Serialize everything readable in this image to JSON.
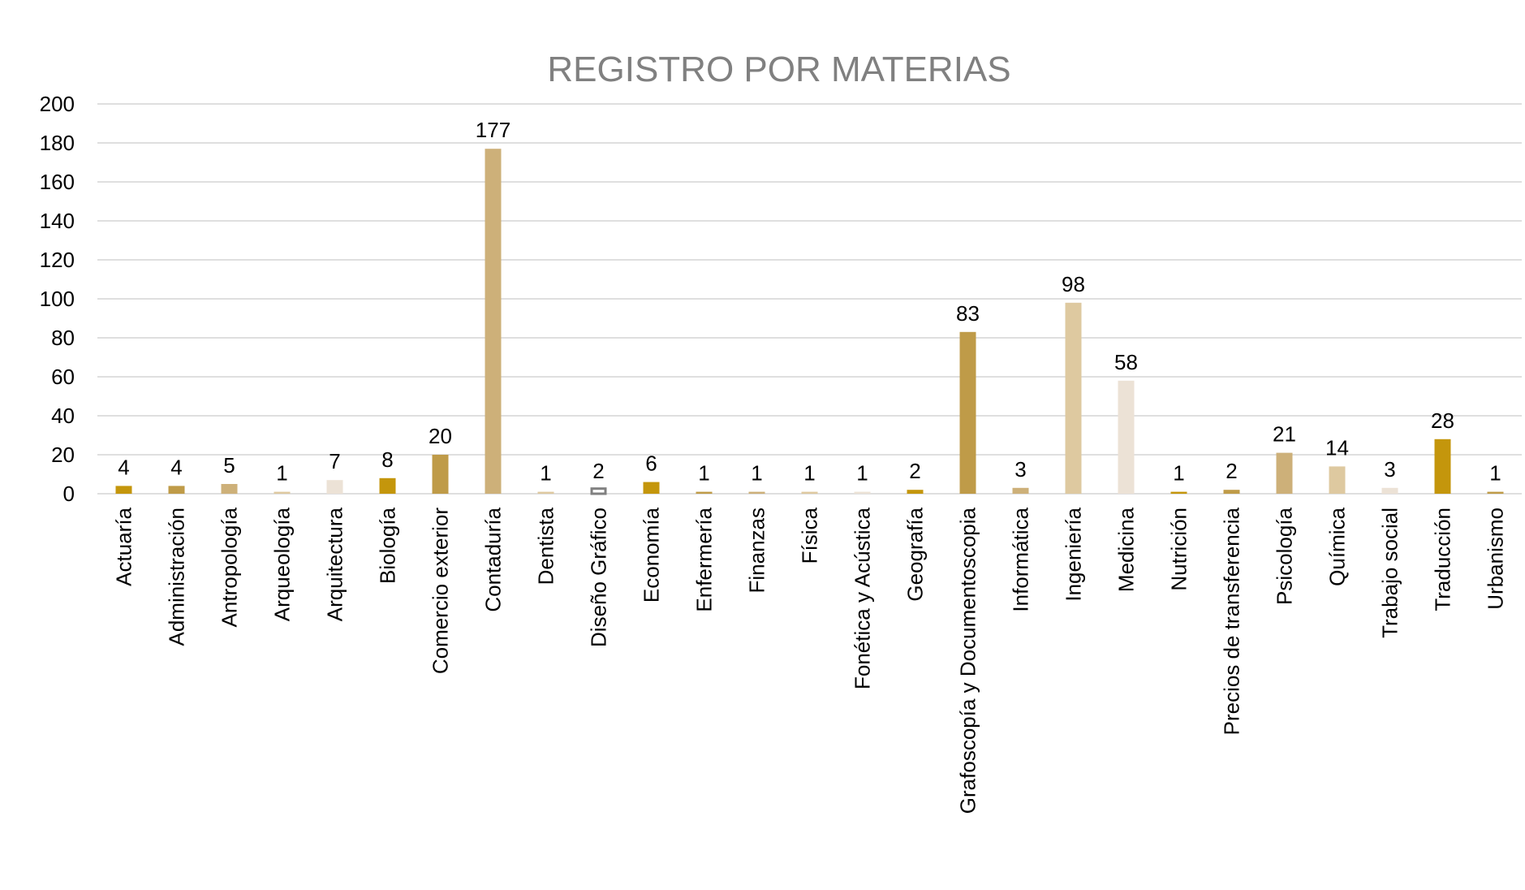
{
  "chart_data": {
    "type": "bar",
    "title": "REGISTRO POR MATERIAS",
    "xlabel": "",
    "ylabel": "",
    "ylim": [
      0,
      200
    ],
    "yticks": [
      0,
      20,
      40,
      60,
      80,
      100,
      120,
      140,
      160,
      180,
      200
    ],
    "grid": true,
    "legend": "none",
    "data_labels": true,
    "categories": [
      "Actuaría",
      "Administración",
      "Antropología",
      "Arqueología",
      "Arquitectura",
      "Biología",
      "Comercio exterior",
      "Contaduría",
      "Dentista",
      "Diseño Gráfico",
      "Economía",
      "Enfermería",
      "Finanzas",
      "Física",
      "Fonética y Acústica",
      "Geografía",
      "Grafoscopía y Documentoscopia",
      "Informática",
      "Ingeniería",
      "Medicina",
      "Nutrición",
      "Precios de transferencia",
      "Psicología",
      "Química",
      "Trabajo social",
      "Traducción",
      "Urbanismo"
    ],
    "values": [
      4,
      4,
      5,
      1,
      7,
      8,
      20,
      177,
      1,
      2,
      6,
      1,
      1,
      1,
      1,
      2,
      83,
      3,
      98,
      58,
      1,
      2,
      21,
      14,
      3,
      28,
      1
    ],
    "colors": [
      "#C4960C",
      "#BF9B48",
      "#CDB079",
      "#DEC9A0",
      "#ECE2D6",
      "#C4960C",
      "#BF9B48",
      "#CDB079",
      "#DEC9A0",
      "#FFFFFF",
      "#C4960C",
      "#BF9B48",
      "#CDB079",
      "#DEC9A0",
      "#ECE2D6",
      "#C4960C",
      "#BF9B48",
      "#CDB079",
      "#DEC9A0",
      "#ECE2D6",
      "#C4960C",
      "#BF9B48",
      "#CDB079",
      "#DEC9A0",
      "#ECE2D6",
      "#C4960C",
      "#BF9B48"
    ],
    "outlined_bar_stroke": "#808080",
    "title_color": "#808080",
    "gridline_color": "#BFBFBF"
  }
}
